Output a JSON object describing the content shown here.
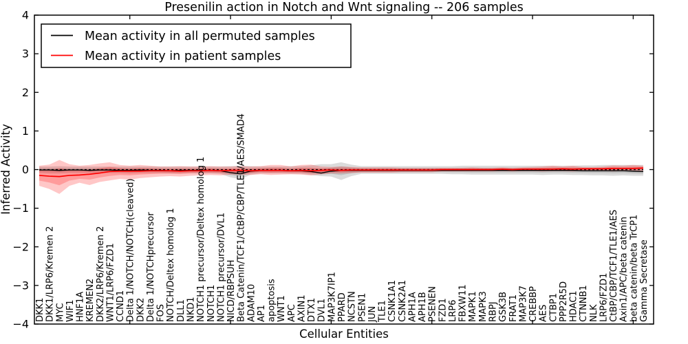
{
  "chart_data": {
    "type": "line",
    "title": "Presenilin action in Notch and Wnt signaling -- 206 samples",
    "xlabel": "Cellular Entities",
    "ylabel": "Inferred Activity",
    "ylim": [
      -4,
      4
    ],
    "ytick_values": [
      4,
      3,
      2,
      1,
      0,
      -1,
      -2,
      -3,
      -4
    ],
    "ytick_labels": [
      "4",
      "3",
      "2",
      "1",
      "0",
      "−1",
      "−2",
      "−3",
      "−4"
    ],
    "grid": false,
    "legend_position": "upper left",
    "zero_line": {
      "style": "dashed",
      "color": "#000000",
      "y": 0
    },
    "colors": {
      "permuted_line": "#000000",
      "patient_line": "#ff0000",
      "permuted_band": "#7f7f7f",
      "patient_band": "#ff0000"
    },
    "categories": [
      "DKK1",
      "DKK1/LRP6/Kremen 2",
      "MYC",
      "WIF1",
      "HNF1A",
      "KREMEN2",
      "DKK2/LRP6/Kremen 2",
      "WNT1/LRP6/FZD1",
      "CCND1",
      "Delta 1/NOTCH/NOTCH(cleaved)",
      "DKK2",
      "Delta 1/NOTCHprecursor",
      "FOS",
      "NOTCH/Deltex homolog 1",
      "DLL1",
      "NKD1",
      "NOTCH1 precursor/Deltex homolog 1",
      "NOTCH1",
      "NOTCH1 precursor/DVL1",
      "NICD/RBPSUH",
      "Beta Catenin/TCF1/CtBP/CBP/TLE1/AES/SMAD4",
      "ADAM10",
      "AP1",
      "apoptosis",
      "WNT1",
      "APC",
      "AXIN1",
      "DTX1",
      "DVL1",
      "MAP3K7IP1",
      "PPARD",
      "NCSTN",
      "PSEN1",
      "JUN",
      "TLE1",
      "CSNK1A1",
      "CSNK2A1",
      "APH1A",
      "APH1B",
      "PSENEN",
      "FZD1",
      "LRP6",
      "FBXW11",
      "MAPK1",
      "MAPK3",
      "RBPJ",
      "GSK3B",
      "FRAT1",
      "MAP3K7",
      "CREBBP",
      "AES",
      "CTBP1",
      "PPP2R5D",
      "HDAC1",
      "CTNNB1",
      "NLK",
      "LRP6/FZD1",
      "CtBP/CBP/TCF1/TLE1/AES",
      "Axin1/APC/beta catenin",
      "beta catenin/beta TrCP1",
      "Gamma Secretase"
    ],
    "series": [
      {
        "name": "Mean activity in all permuted samples",
        "color": "#000000",
        "values": [
          -0.01,
          -0.01,
          -0.02,
          -0.01,
          -0.01,
          -0.02,
          -0.01,
          -0.01,
          -0.02,
          -0.02,
          -0.01,
          -0.02,
          -0.02,
          -0.03,
          -0.02,
          -0.02,
          -0.02,
          -0.02,
          -0.03,
          -0.08,
          -0.11,
          -0.04,
          -0.02,
          -0.02,
          -0.02,
          -0.03,
          -0.03,
          -0.05,
          -0.09,
          -0.04,
          -0.02,
          -0.02,
          -0.02,
          -0.02,
          -0.02,
          -0.02,
          -0.02,
          -0.02,
          -0.02,
          -0.02,
          -0.02,
          -0.02,
          -0.02,
          -0.02,
          -0.02,
          -0.02,
          -0.02,
          -0.02,
          -0.02,
          -0.02,
          -0.02,
          -0.02,
          -0.02,
          -0.02,
          -0.03,
          -0.03,
          -0.03,
          -0.03,
          -0.03,
          -0.04,
          -0.05
        ],
        "band_top": [
          0.08,
          0.08,
          0.09,
          0.08,
          0.08,
          0.08,
          0.08,
          0.08,
          0.08,
          0.08,
          0.08,
          0.08,
          0.08,
          0.08,
          0.08,
          0.08,
          0.08,
          0.08,
          0.08,
          0.09,
          0.1,
          0.09,
          0.08,
          0.08,
          0.08,
          0.09,
          0.09,
          0.11,
          0.14,
          0.14,
          0.19,
          0.13,
          0.09,
          0.09,
          0.09,
          0.09,
          0.09,
          0.09,
          0.09,
          0.09,
          0.09,
          0.09,
          0.1,
          0.1,
          0.1,
          0.1,
          0.1,
          0.1,
          0.1,
          0.1,
          0.1,
          0.1,
          0.1,
          0.1,
          0.11,
          0.11,
          0.12,
          0.12,
          0.12,
          0.12,
          0.12
        ],
        "band_bottom": [
          -0.09,
          -0.1,
          -0.1,
          -0.09,
          -0.09,
          -0.09,
          -0.09,
          -0.09,
          -0.09,
          -0.1,
          -0.09,
          -0.09,
          -0.09,
          -0.1,
          -0.1,
          -0.09,
          -0.1,
          -0.1,
          -0.11,
          -0.2,
          -0.25,
          -0.13,
          -0.1,
          -0.1,
          -0.1,
          -0.11,
          -0.11,
          -0.14,
          -0.17,
          -0.18,
          -0.27,
          -0.17,
          -0.11,
          -0.11,
          -0.11,
          -0.11,
          -0.11,
          -0.11,
          -0.11,
          -0.11,
          -0.11,
          -0.12,
          -0.12,
          -0.13,
          -0.13,
          -0.13,
          -0.13,
          -0.13,
          -0.13,
          -0.13,
          -0.14,
          -0.13,
          -0.13,
          -0.14,
          -0.14,
          -0.15,
          -0.15,
          -0.16,
          -0.15,
          -0.16,
          -0.16
        ]
      },
      {
        "name": "Mean activity in patient samples",
        "color": "#ff0000",
        "values": [
          -0.15,
          -0.17,
          -0.18,
          -0.15,
          -0.14,
          -0.12,
          -0.09,
          -0.05,
          -0.04,
          -0.04,
          -0.04,
          -0.03,
          -0.03,
          -0.03,
          -0.04,
          -0.03,
          -0.03,
          -0.02,
          -0.03,
          -0.02,
          -0.02,
          -0.03,
          -0.02,
          -0.02,
          -0.02,
          -0.03,
          -0.02,
          -0.03,
          -0.02,
          -0.01,
          -0.02,
          -0.01,
          -0.01,
          -0.01,
          -0.01,
          -0.01,
          -0.01,
          -0.01,
          -0.01,
          -0.01,
          0,
          0,
          0,
          0,
          0,
          0,
          0.01,
          0,
          0.01,
          0.01,
          0.01,
          0.01,
          0.02,
          0.01,
          0.02,
          0.02,
          0.02,
          0.03,
          0.03,
          0.03,
          0.04
        ],
        "band_top": [
          0.1,
          0.13,
          0.25,
          0.14,
          0.1,
          0.12,
          0.16,
          0.19,
          0.12,
          0.1,
          0.12,
          0.1,
          0.08,
          0.08,
          0.09,
          0.08,
          0.08,
          0.09,
          0.08,
          0.08,
          0.09,
          0.08,
          0.09,
          0.12,
          0.12,
          0.08,
          0.12,
          0.13,
          0.08,
          0.07,
          0.08,
          0.07,
          0.06,
          0.06,
          0.06,
          0.06,
          0.05,
          0.05,
          0.05,
          0.05,
          0.05,
          0.05,
          0.05,
          0.06,
          0.05,
          0.05,
          0.06,
          0.05,
          0.06,
          0.07,
          0.08,
          0.1,
          0.08,
          0.1,
          0.07,
          0.07,
          0.08,
          0.11,
          0.1,
          0.12,
          0.1
        ],
        "band_bottom": [
          -0.42,
          -0.5,
          -0.63,
          -0.42,
          -0.34,
          -0.4,
          -0.32,
          -0.28,
          -0.24,
          -0.26,
          -0.22,
          -0.2,
          -0.18,
          -0.17,
          -0.18,
          -0.16,
          -0.15,
          -0.14,
          -0.15,
          -0.13,
          -0.13,
          -0.14,
          -0.12,
          -0.14,
          -0.13,
          -0.12,
          -0.13,
          -0.15,
          -0.12,
          -0.1,
          -0.1,
          -0.09,
          -0.08,
          -0.08,
          -0.08,
          -0.08,
          -0.07,
          -0.07,
          -0.07,
          -0.07,
          -0.05,
          -0.05,
          -0.05,
          -0.05,
          -0.05,
          -0.05,
          -0.04,
          -0.05,
          -0.04,
          -0.04,
          -0.05,
          -0.04,
          -0.04,
          -0.05,
          -0.03,
          -0.03,
          -0.04,
          -0.05,
          -0.04,
          -0.05,
          -0.03
        ]
      }
    ]
  }
}
